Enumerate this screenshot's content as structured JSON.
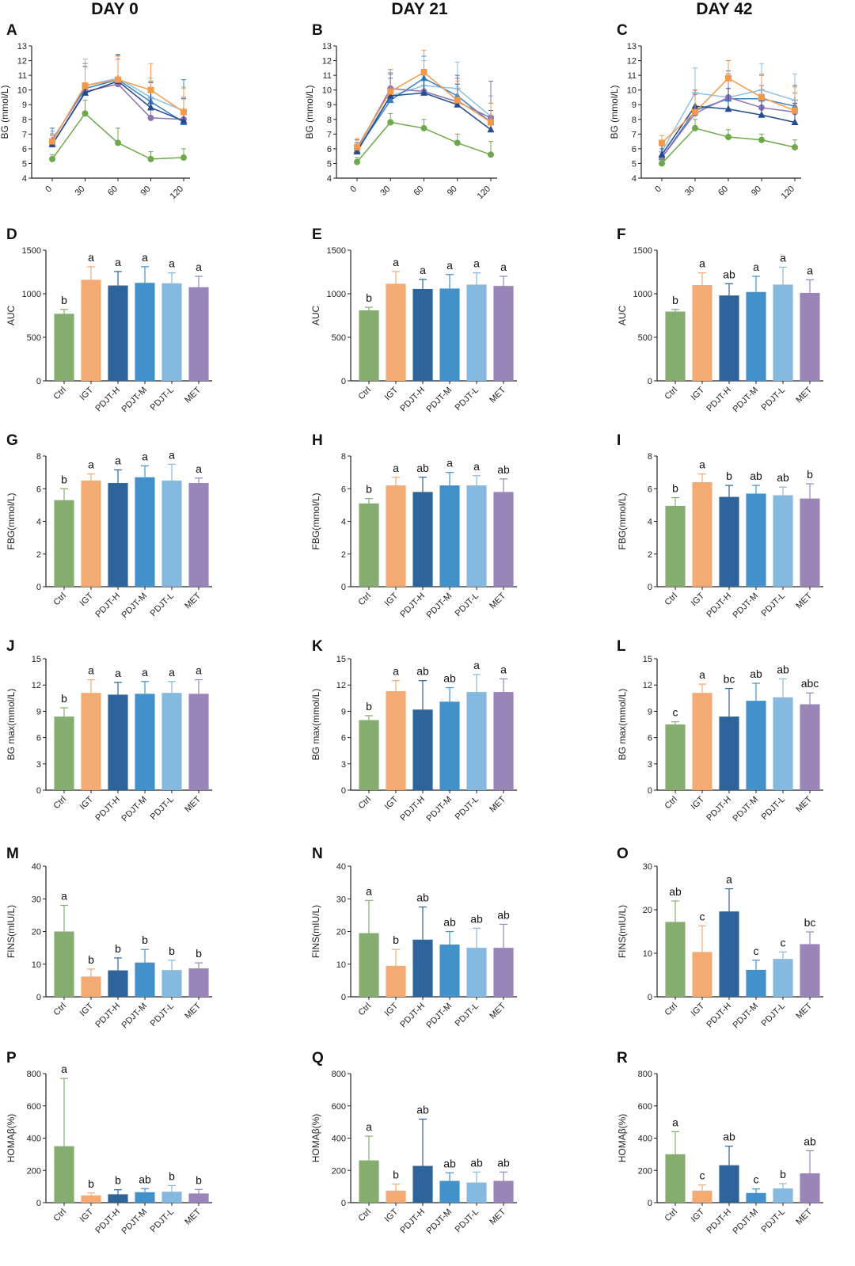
{
  "day_titles": [
    "DAY 0",
    "DAY 21",
    "DAY 42"
  ],
  "panel_letters": [
    "A",
    "B",
    "C",
    "D",
    "E",
    "F",
    "G",
    "H",
    "I",
    "J",
    "K",
    "L",
    "M",
    "N",
    "O",
    "P",
    "Q",
    "R"
  ],
  "groups": [
    "Ctrl",
    "IGT",
    "PDJT-H",
    "PDJT-M",
    "PDJT-L",
    "MET"
  ],
  "colors": {
    "Ctrl": "#85ad6f",
    "IGT": "#f4ab73",
    "PDJT-H": "#2f649a",
    "PDJT-M": "#4391cb",
    "PDJT-L": "#86b9df",
    "MET": "#9a85b8",
    "line_Ctrl": "#6fa84a",
    "line_IGT": "#f39a4a",
    "line_PDJT-H": "#234b8e",
    "line_PDJT-M": "#3a7fc4",
    "line_PDJT-L": "#8cc0e4",
    "line_MET": "#8f72b4"
  },
  "chart_data": [
    {
      "id": "A",
      "type": "line",
      "ylabel": "BG (mmol/L)",
      "x": [
        0,
        30,
        60,
        90,
        120
      ],
      "xticks": [
        "0",
        "30",
        "60",
        "90",
        "120"
      ],
      "ylim": [
        4,
        13
      ],
      "yticks": [
        4,
        5,
        6,
        7,
        8,
        9,
        10,
        11,
        12,
        13
      ],
      "series": [
        {
          "name": "Ctrl",
          "values": [
            5.3,
            8.4,
            6.4,
            5.3,
            5.4
          ],
          "err": [
            0.3,
            0.9,
            1.0,
            0.5,
            0.6
          ]
        },
        {
          "name": "IGT",
          "values": [
            6.5,
            10.3,
            10.7,
            10.0,
            8.5
          ],
          "err": [
            0.5,
            1.5,
            1.6,
            1.8,
            1.6
          ]
        },
        {
          "name": "PDJT-H",
          "values": [
            6.3,
            9.8,
            10.6,
            8.8,
            7.9
          ],
          "err": [
            0.7,
            1.8,
            1.8,
            1.7,
            1.5
          ]
        },
        {
          "name": "PDJT-M",
          "values": [
            6.6,
            10.1,
            10.7,
            9.2,
            7.8
          ],
          "err": [
            0.8,
            1.7,
            1.7,
            1.4,
            2.9
          ]
        },
        {
          "name": "PDJT-L",
          "values": [
            6.5,
            10.3,
            10.8,
            9.5,
            8.6
          ],
          "err": [
            0.7,
            1.8,
            1.5,
            1.3,
            1.6
          ]
        },
        {
          "name": "MET",
          "values": [
            6.3,
            9.9,
            10.4,
            8.1,
            8.0
          ],
          "err": [
            0.6,
            1.9,
            1.7,
            1.3,
            1.5
          ]
        }
      ]
    },
    {
      "id": "B",
      "type": "line",
      "ylabel": "BG (mmol/L)",
      "x": [
        0,
        30,
        60,
        90,
        120
      ],
      "xticks": [
        "0",
        "30",
        "60",
        "90",
        "120"
      ],
      "ylim": [
        4,
        13
      ],
      "yticks": [
        4,
        5,
        6,
        7,
        8,
        9,
        10,
        11,
        12,
        13
      ],
      "series": [
        {
          "name": "Ctrl",
          "values": [
            5.1,
            7.8,
            7.4,
            6.4,
            5.6
          ],
          "err": [
            0.3,
            0.6,
            0.6,
            0.6,
            0.9
          ]
        },
        {
          "name": "IGT",
          "values": [
            6.1,
            9.9,
            11.2,
            9.3,
            7.8
          ],
          "err": [
            0.6,
            1.5,
            1.5,
            1.3,
            1.3
          ]
        },
        {
          "name": "PDJT-H",
          "values": [
            5.8,
            9.6,
            9.8,
            9.0,
            7.3
          ],
          "err": [
            0.6,
            1.5,
            1.6,
            1.4,
            1.3
          ]
        },
        {
          "name": "PDJT-M",
          "values": [
            5.9,
            9.3,
            10.8,
            9.6,
            7.8
          ],
          "err": [
            0.7,
            1.5,
            1.5,
            1.4,
            1.3
          ]
        },
        {
          "name": "PDJT-L",
          "values": [
            6.0,
            9.6,
            10.3,
            10.1,
            8.2
          ],
          "err": [
            0.6,
            1.6,
            1.7,
            1.8,
            1.4
          ]
        },
        {
          "name": "MET",
          "values": [
            6.0,
            10.1,
            9.9,
            9.2,
            8.1
          ],
          "err": [
            0.6,
            1.3,
            1.3,
            1.6,
            2.5
          ]
        }
      ]
    },
    {
      "id": "C",
      "type": "line",
      "ylabel": "BG (mmol/L)",
      "x": [
        0,
        30,
        60,
        90,
        120
      ],
      "xticks": [
        "0",
        "30",
        "60",
        "90",
        "120"
      ],
      "ylim": [
        4,
        13
      ],
      "yticks": [
        4,
        5,
        6,
        7,
        8,
        9,
        10,
        11,
        12,
        13
      ],
      "series": [
        {
          "name": "Ctrl",
          "values": [
            5.0,
            7.4,
            6.8,
            6.6,
            6.1
          ],
          "err": [
            0.3,
            0.6,
            0.5,
            0.4,
            0.5
          ]
        },
        {
          "name": "IGT",
          "values": [
            6.4,
            8.5,
            10.8,
            9.5,
            8.6
          ],
          "err": [
            0.5,
            1.5,
            1.2,
            1.6,
            1.6
          ]
        },
        {
          "name": "PDJT-H",
          "values": [
            5.6,
            8.9,
            8.7,
            8.3,
            7.8
          ],
          "err": [
            0.6,
            1.1,
            1.4,
            1.4,
            1.3
          ]
        },
        {
          "name": "PDJT-M",
          "values": [
            5.4,
            8.6,
            9.4,
            9.4,
            8.9
          ],
          "err": [
            0.6,
            1.4,
            1.9,
            1.6,
            1.4
          ]
        },
        {
          "name": "PDJT-L",
          "values": [
            5.8,
            9.8,
            9.5,
            10.0,
            9.3
          ],
          "err": [
            0.6,
            1.7,
            2.5,
            1.8,
            1.8
          ]
        },
        {
          "name": "MET",
          "values": [
            5.4,
            8.4,
            9.5,
            8.8,
            8.5
          ],
          "err": [
            0.6,
            1.3,
            1.6,
            1.5,
            1.3
          ]
        }
      ]
    },
    {
      "id": "D",
      "type": "bar",
      "ylabel": "AUC",
      "ylim": [
        0,
        1500
      ],
      "yticks": [
        0,
        500,
        1000,
        1500
      ],
      "categories": [
        "Ctrl",
        "IGT",
        "PDJT-H",
        "PDJT-M",
        "PDJT-L",
        "MET"
      ],
      "values": [
        770,
        1160,
        1095,
        1125,
        1120,
        1075
      ],
      "err": [
        50,
        150,
        160,
        185,
        120,
        125
      ],
      "labels": [
        "b",
        "a",
        "a",
        "a",
        "a",
        "a"
      ]
    },
    {
      "id": "E",
      "type": "bar",
      "ylabel": "AUC",
      "ylim": [
        0,
        1500
      ],
      "yticks": [
        0,
        500,
        1000,
        1500
      ],
      "categories": [
        "Ctrl",
        "IGT",
        "PDJT-H",
        "PDJT-M",
        "PDJT-L",
        "MET"
      ],
      "values": [
        810,
        1115,
        1055,
        1060,
        1105,
        1090
      ],
      "err": [
        35,
        140,
        110,
        160,
        135,
        110
      ],
      "labels": [
        "b",
        "a",
        "a",
        "a",
        "a",
        "a"
      ]
    },
    {
      "id": "F",
      "type": "bar",
      "ylabel": "AUC",
      "ylim": [
        0,
        1500
      ],
      "yticks": [
        0,
        500,
        1000,
        1500
      ],
      "categories": [
        "Ctrl",
        "IGT",
        "PDJT-H",
        "PDJT-M",
        "PDJT-L",
        "MET"
      ],
      "values": [
        795,
        1100,
        980,
        1020,
        1105,
        1010
      ],
      "err": [
        25,
        140,
        135,
        180,
        200,
        150
      ],
      "labels": [
        "b",
        "a",
        "ab",
        "a",
        "a",
        "a"
      ]
    },
    {
      "id": "G",
      "type": "bar",
      "ylabel": "FBG(mmol/L)",
      "ylim": [
        0,
        8
      ],
      "yticks": [
        0,
        2,
        4,
        6,
        8
      ],
      "categories": [
        "Ctrl",
        "IGT",
        "PDJT-H",
        "PDJT-M",
        "PDJT-L",
        "MET"
      ],
      "values": [
        5.3,
        6.5,
        6.35,
        6.7,
        6.5,
        6.35
      ],
      "err": [
        0.7,
        0.4,
        0.8,
        0.7,
        1.0,
        0.3
      ],
      "labels": [
        "b",
        "a",
        "a",
        "a",
        "a",
        "a"
      ]
    },
    {
      "id": "H",
      "type": "bar",
      "ylabel": "FBG(mmol/L)",
      "ylim": [
        0,
        8
      ],
      "yticks": [
        0,
        2,
        4,
        6,
        8
      ],
      "categories": [
        "Ctrl",
        "IGT",
        "PDJT-H",
        "PDJT-M",
        "PDJT-L",
        "MET"
      ],
      "values": [
        5.1,
        6.2,
        5.8,
        6.2,
        6.2,
        5.8
      ],
      "err": [
        0.3,
        0.5,
        0.9,
        0.8,
        0.6,
        0.8
      ],
      "labels": [
        "b",
        "a",
        "ab",
        "a",
        "a",
        "ab"
      ]
    },
    {
      "id": "I",
      "type": "bar",
      "ylabel": "FBG(mmol/L)",
      "ylim": [
        0,
        8
      ],
      "yticks": [
        0,
        2,
        4,
        6,
        8
      ],
      "categories": [
        "Ctrl",
        "IGT",
        "PDJT-H",
        "PDJT-M",
        "PDJT-L",
        "MET"
      ],
      "values": [
        4.95,
        6.4,
        5.5,
        5.7,
        5.6,
        5.4
      ],
      "err": [
        0.5,
        0.5,
        0.7,
        0.5,
        0.5,
        0.9
      ],
      "labels": [
        "b",
        "a",
        "b",
        "ab",
        "ab",
        "b"
      ]
    },
    {
      "id": "J",
      "type": "bar",
      "ylabel": "BG max(mmol/L)",
      "ylim": [
        0,
        15
      ],
      "yticks": [
        0,
        3,
        6,
        9,
        12,
        15
      ],
      "categories": [
        "Ctrl",
        "IGT",
        "PDJT-H",
        "PDJT-M",
        "PDJT-L",
        "MET"
      ],
      "values": [
        8.4,
        11.1,
        10.9,
        11.0,
        11.1,
        11.0
      ],
      "err": [
        1.0,
        1.5,
        1.4,
        1.4,
        1.3,
        1.6
      ],
      "labels": [
        "b",
        "a",
        "a",
        "a",
        "a",
        "a"
      ]
    },
    {
      "id": "K",
      "type": "bar",
      "ylabel": "BG max(mmol/L)",
      "ylim": [
        0,
        15
      ],
      "yticks": [
        0,
        3,
        6,
        9,
        12,
        15
      ],
      "categories": [
        "Ctrl",
        "IGT",
        "PDJT-H",
        "PDJT-M",
        "PDJT-L",
        "MET"
      ],
      "values": [
        8.0,
        11.3,
        9.2,
        10.1,
        11.2,
        11.2
      ],
      "err": [
        0.5,
        1.2,
        3.3,
        1.6,
        2.0,
        1.5
      ],
      "labels": [
        "b",
        "a",
        "ab",
        "ab",
        "a",
        "a"
      ]
    },
    {
      "id": "L",
      "type": "bar",
      "ylabel": "BG max(mmol/L)",
      "ylim": [
        0,
        15
      ],
      "yticks": [
        0,
        3,
        6,
        9,
        12,
        15
      ],
      "categories": [
        "Ctrl",
        "IGT",
        "PDJT-H",
        "PDJT-M",
        "PDJT-L",
        "MET"
      ],
      "values": [
        7.5,
        11.1,
        8.4,
        10.2,
        10.6,
        9.8
      ],
      "err": [
        0.3,
        1.0,
        3.2,
        2.0,
        2.1,
        1.3
      ],
      "labels": [
        "c",
        "a",
        "bc",
        "ab",
        "ab",
        "abc"
      ]
    },
    {
      "id": "M",
      "type": "bar",
      "ylabel": "FINS(mIU/L)",
      "ylim": [
        0,
        40
      ],
      "yticks": [
        0,
        10,
        20,
        30,
        40
      ],
      "categories": [
        "Ctrl",
        "IGT",
        "PDJT-H",
        "PDJT-M",
        "PDJT-L",
        "MET"
      ],
      "values": [
        20.0,
        6.2,
        8.1,
        10.5,
        8.2,
        8.7
      ],
      "err": [
        8.0,
        2.3,
        3.8,
        4.0,
        3.0,
        1.7
      ],
      "labels": [
        "a",
        "b",
        "b",
        "b",
        "b",
        "b"
      ]
    },
    {
      "id": "N",
      "type": "bar",
      "ylabel": "FINS(mIU/L)",
      "ylim": [
        0,
        40
      ],
      "yticks": [
        0,
        10,
        20,
        30,
        40
      ],
      "categories": [
        "Ctrl",
        "IGT",
        "PDJT-H",
        "PDJT-M",
        "PDJT-L",
        "MET"
      ],
      "values": [
        19.5,
        9.5,
        17.5,
        16.0,
        15.0,
        15.0
      ],
      "err": [
        10.0,
        5.0,
        10.0,
        4.0,
        6.0,
        7.2
      ],
      "labels": [
        "a",
        "b",
        "ab",
        "ab",
        "ab",
        "ab"
      ]
    },
    {
      "id": "O",
      "type": "bar",
      "ylabel": "FINS(mIU/L)",
      "ylim": [
        0,
        30
      ],
      "yticks": [
        0,
        10,
        20,
        30
      ],
      "categories": [
        "Ctrl",
        "IGT",
        "PDJT-H",
        "PDJT-M",
        "PDJT-L",
        "MET"
      ],
      "values": [
        17.2,
        10.3,
        19.6,
        6.2,
        8.7,
        12.1
      ],
      "err": [
        4.8,
        6.0,
        5.2,
        2.2,
        1.6,
        2.8
      ],
      "labels": [
        "ab",
        "c",
        "a",
        "c",
        "c",
        "bc"
      ]
    },
    {
      "id": "P",
      "type": "bar",
      "ylabel": "HOMAβ(%)",
      "ylim": [
        0,
        800
      ],
      "yticks": [
        0,
        200,
        400,
        600,
        800
      ],
      "categories": [
        "Ctrl",
        "IGT",
        "PDJT-H",
        "PDJT-M",
        "PDJT-L",
        "MET"
      ],
      "values": [
        350,
        45,
        52,
        65,
        68,
        57
      ],
      "err": [
        420,
        15,
        28,
        22,
        38,
        25
      ],
      "labels": [
        "a",
        "b",
        "b",
        "ab",
        "b",
        "b"
      ]
    },
    {
      "id": "Q",
      "type": "bar",
      "ylabel": "HOMAβ(%)",
      "ylim": [
        0,
        800
      ],
      "yticks": [
        0,
        200,
        400,
        600,
        800
      ],
      "categories": [
        "Ctrl",
        "IGT",
        "PDJT-H",
        "PDJT-M",
        "PDJT-L",
        "MET"
      ],
      "values": [
        262,
        75,
        228,
        135,
        125,
        135
      ],
      "err": [
        150,
        40,
        290,
        50,
        65,
        55
      ],
      "labels": [
        "a",
        "b",
        "ab",
        "ab",
        "ab",
        "ab"
      ]
    },
    {
      "id": "R",
      "type": "bar",
      "ylabel": "HOMAβ(%)",
      "ylim": [
        0,
        800
      ],
      "yticks": [
        0,
        200,
        400,
        600,
        800
      ],
      "categories": [
        "Ctrl",
        "IGT",
        "PDJT-H",
        "PDJT-M",
        "PDJT-L",
        "MET"
      ],
      "values": [
        300,
        75,
        232,
        60,
        88,
        182
      ],
      "err": [
        140,
        35,
        118,
        25,
        30,
        140
      ],
      "labels": [
        "a",
        "c",
        "ab",
        "c",
        "b",
        "ab"
      ]
    }
  ]
}
